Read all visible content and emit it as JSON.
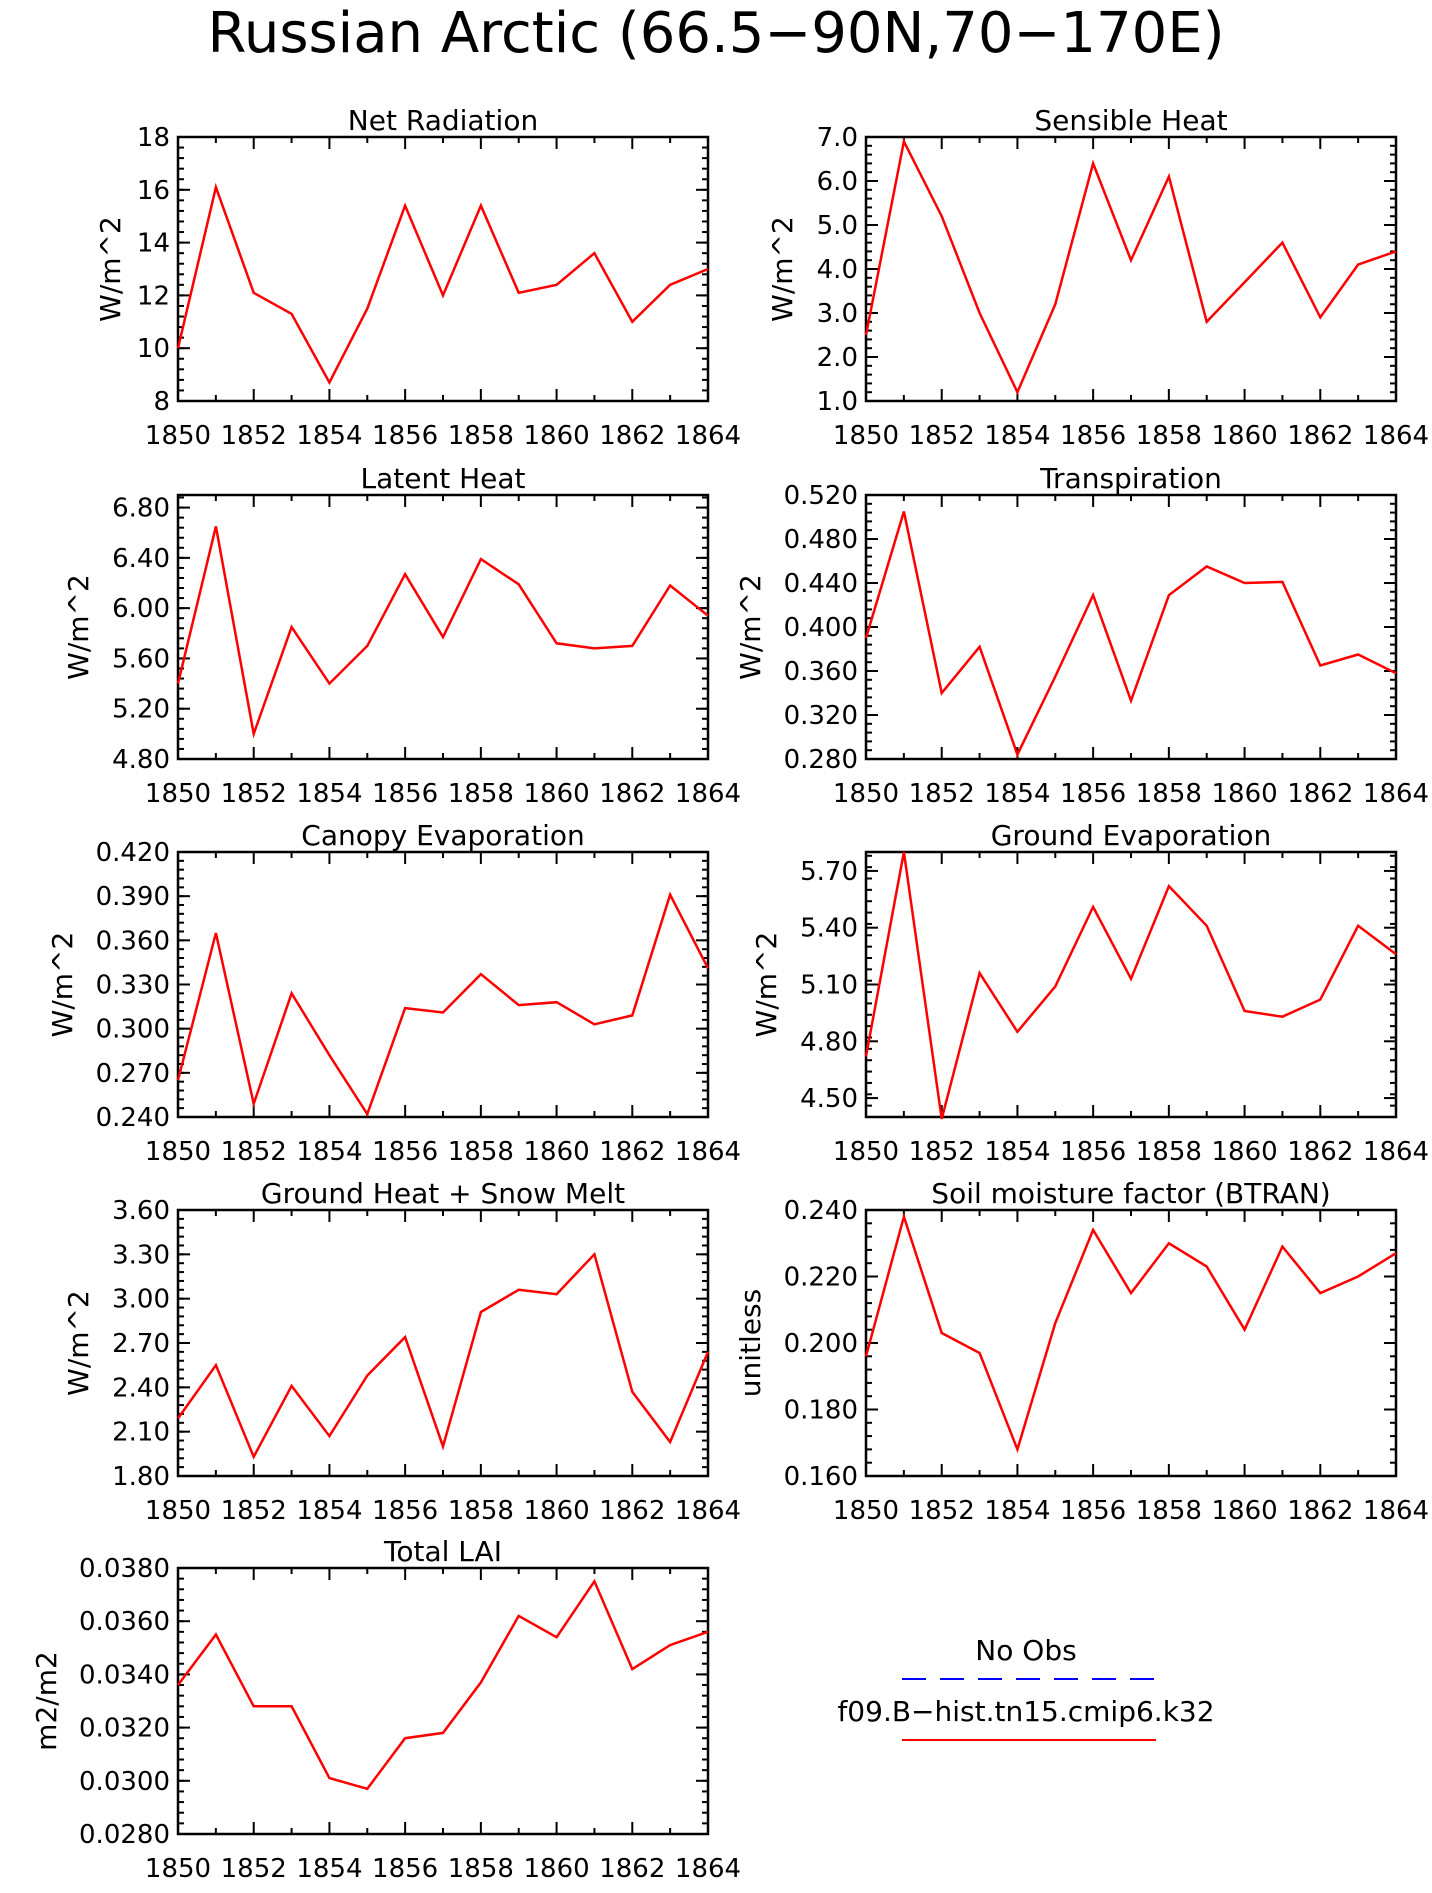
{
  "figure_title": "Russian Arctic (66.5−90N,70−170E)",
  "colors": {
    "model": "#ff0000",
    "obs": "#0000ff",
    "axis": "#000000"
  },
  "legend": {
    "obs_label": "No Obs",
    "model_label": "f09.B−hist.tn15.cmip6.k32"
  },
  "chart_data": [
    {
      "type": "line",
      "title": "Net Radiation",
      "ylabel": "W/m^2",
      "x": [
        1850,
        1851,
        1852,
        1853,
        1854,
        1855,
        1856,
        1857,
        1858,
        1859,
        1860,
        1861,
        1862,
        1863,
        1864
      ],
      "xlim": [
        1850,
        1864
      ],
      "xticks": [
        "1850",
        "1852",
        "1854",
        "1856",
        "1858",
        "1860",
        "1862",
        "1864"
      ],
      "ylim": [
        8,
        18
      ],
      "yticks": [
        "8",
        "10",
        "12",
        "14",
        "16",
        "18"
      ],
      "series": [
        {
          "values": [
            10.0,
            16.1,
            12.1,
            11.3,
            8.7,
            11.5,
            15.4,
            12.0,
            15.4,
            12.1,
            12.4,
            13.6,
            11.0,
            12.4,
            13.0
          ]
        }
      ]
    },
    {
      "type": "line",
      "title": "Sensible Heat",
      "ylabel": "W/m^2",
      "x": [
        1850,
        1851,
        1852,
        1853,
        1854,
        1855,
        1856,
        1857,
        1858,
        1859,
        1860,
        1861,
        1862,
        1863,
        1864
      ],
      "xlim": [
        1850,
        1864
      ],
      "xticks": [
        "1850",
        "1852",
        "1854",
        "1856",
        "1858",
        "1860",
        "1862",
        "1864"
      ],
      "ylim": [
        1.0,
        7.0
      ],
      "yticks": [
        "1.0",
        "2.0",
        "3.0",
        "4.0",
        "5.0",
        "6.0",
        "7.0"
      ],
      "series": [
        {
          "values": [
            2.5,
            6.9,
            5.2,
            3.0,
            1.2,
            3.2,
            6.4,
            4.2,
            6.1,
            2.8,
            3.7,
            4.6,
            2.9,
            4.1,
            4.4
          ]
        }
      ]
    },
    {
      "type": "line",
      "title": "Latent Heat",
      "ylabel": "W/m^2",
      "x": [
        1850,
        1851,
        1852,
        1853,
        1854,
        1855,
        1856,
        1857,
        1858,
        1859,
        1860,
        1861,
        1862,
        1863,
        1864
      ],
      "xlim": [
        1850,
        1864
      ],
      "xticks": [
        "1850",
        "1852",
        "1854",
        "1856",
        "1858",
        "1860",
        "1862",
        "1864"
      ],
      "ylim": [
        4.8,
        6.9
      ],
      "yticks": [
        "4.80",
        "5.20",
        "5.60",
        "6.00",
        "6.40",
        "6.80"
      ],
      "series": [
        {
          "values": [
            5.4,
            6.65,
            5.0,
            5.85,
            5.4,
            5.7,
            6.27,
            5.77,
            6.39,
            6.19,
            5.72,
            5.68,
            5.7,
            6.18,
            5.94
          ]
        }
      ]
    },
    {
      "type": "line",
      "title": "Transpiration",
      "ylabel": "W/m^2",
      "x": [
        1850,
        1851,
        1852,
        1853,
        1854,
        1855,
        1856,
        1857,
        1858,
        1859,
        1860,
        1861,
        1862,
        1863,
        1864
      ],
      "xlim": [
        1850,
        1864
      ],
      "xticks": [
        "1850",
        "1852",
        "1854",
        "1856",
        "1858",
        "1860",
        "1862",
        "1864"
      ],
      "ylim": [
        0.28,
        0.52
      ],
      "yticks": [
        "0.280",
        "0.320",
        "0.360",
        "0.400",
        "0.440",
        "0.480",
        "0.520"
      ],
      "series": [
        {
          "values": [
            0.39,
            0.505,
            0.34,
            0.382,
            0.284,
            0.355,
            0.429,
            0.333,
            0.429,
            0.455,
            0.44,
            0.441,
            0.365,
            0.375,
            0.358
          ]
        }
      ]
    },
    {
      "type": "line",
      "title": "Canopy Evaporation",
      "ylabel": "W/m^2",
      "x": [
        1850,
        1851,
        1852,
        1853,
        1854,
        1855,
        1856,
        1857,
        1858,
        1859,
        1860,
        1861,
        1862,
        1863,
        1864
      ],
      "xlim": [
        1850,
        1864
      ],
      "xticks": [
        "1850",
        "1852",
        "1854",
        "1856",
        "1858",
        "1860",
        "1862",
        "1864"
      ],
      "ylim": [
        0.24,
        0.42
      ],
      "yticks": [
        "0.240",
        "0.270",
        "0.300",
        "0.330",
        "0.360",
        "0.390",
        "0.420"
      ],
      "series": [
        {
          "values": [
            0.265,
            0.365,
            0.249,
            0.324,
            0.282,
            0.242,
            0.314,
            0.311,
            0.337,
            0.316,
            0.318,
            0.303,
            0.309,
            0.391,
            0.341
          ]
        }
      ]
    },
    {
      "type": "line",
      "title": "Ground Evaporation",
      "ylabel": "W/m^2",
      "x": [
        1850,
        1851,
        1852,
        1853,
        1854,
        1855,
        1856,
        1857,
        1858,
        1859,
        1860,
        1861,
        1862,
        1863,
        1864
      ],
      "xlim": [
        1850,
        1864
      ],
      "xticks": [
        "1850",
        "1852",
        "1854",
        "1856",
        "1858",
        "1860",
        "1862",
        "1864"
      ],
      "ylim": [
        4.4,
        5.8
      ],
      "yticks": [
        "4.50",
        "4.80",
        "5.10",
        "5.40",
        "5.70"
      ],
      "series": [
        {
          "values": [
            4.72,
            5.8,
            4.39,
            5.16,
            4.85,
            5.09,
            5.51,
            5.13,
            5.62,
            5.41,
            4.96,
            4.93,
            5.02,
            5.41,
            5.26
          ]
        }
      ]
    },
    {
      "type": "line",
      "title": "Ground Heat + Snow Melt",
      "ylabel": "W/m^2",
      "x": [
        1850,
        1851,
        1852,
        1853,
        1854,
        1855,
        1856,
        1857,
        1858,
        1859,
        1860,
        1861,
        1862,
        1863,
        1864
      ],
      "xlim": [
        1850,
        1864
      ],
      "xticks": [
        "1850",
        "1852",
        "1854",
        "1856",
        "1858",
        "1860",
        "1862",
        "1864"
      ],
      "ylim": [
        1.8,
        3.6
      ],
      "yticks": [
        "1.80",
        "2.10",
        "2.40",
        "2.70",
        "3.00",
        "3.30",
        "3.60"
      ],
      "series": [
        {
          "values": [
            2.19,
            2.55,
            1.93,
            2.41,
            2.07,
            2.48,
            2.74,
            2.0,
            2.91,
            3.06,
            3.03,
            3.3,
            2.37,
            2.03,
            2.64
          ]
        }
      ]
    },
    {
      "type": "line",
      "title": "Soil moisture factor (BTRAN)",
      "ylabel": "unitless",
      "x": [
        1850,
        1851,
        1852,
        1853,
        1854,
        1855,
        1856,
        1857,
        1858,
        1859,
        1860,
        1861,
        1862,
        1863,
        1864
      ],
      "xlim": [
        1850,
        1864
      ],
      "xticks": [
        "1850",
        "1852",
        "1854",
        "1856",
        "1858",
        "1860",
        "1862",
        "1864"
      ],
      "ylim": [
        0.16,
        0.24
      ],
      "yticks": [
        "0.160",
        "0.180",
        "0.200",
        "0.220",
        "0.240"
      ],
      "series": [
        {
          "values": [
            0.196,
            0.238,
            0.203,
            0.197,
            0.168,
            0.206,
            0.234,
            0.215,
            0.23,
            0.223,
            0.204,
            0.229,
            0.215,
            0.22,
            0.227
          ]
        }
      ]
    },
    {
      "type": "line",
      "title": "Total LAI",
      "ylabel": "m2/m2",
      "x": [
        1850,
        1851,
        1852,
        1853,
        1854,
        1855,
        1856,
        1857,
        1858,
        1859,
        1860,
        1861,
        1862,
        1863,
        1864
      ],
      "xlim": [
        1850,
        1864
      ],
      "xticks": [
        "1850",
        "1852",
        "1854",
        "1856",
        "1858",
        "1860",
        "1862",
        "1864"
      ],
      "ylim": [
        0.028,
        0.038
      ],
      "yticks": [
        "0.0280",
        "0.0300",
        "0.0320",
        "0.0340",
        "0.0360",
        "0.0380"
      ],
      "series": [
        {
          "values": [
            0.0336,
            0.0355,
            0.0328,
            0.0328,
            0.0301,
            0.0297,
            0.0316,
            0.0318,
            0.0337,
            0.0362,
            0.0354,
            0.0375,
            0.0342,
            0.0351,
            0.0356
          ]
        }
      ]
    }
  ]
}
